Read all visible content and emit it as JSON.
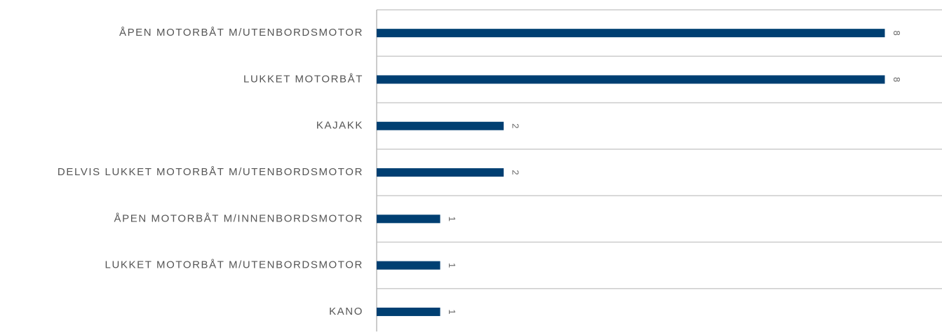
{
  "chart_data": {
    "type": "bar",
    "orientation": "horizontal",
    "categories": [
      "ÅPEN MOTORBÅT M/UTENBORDSMOTOR",
      "LUKKET MOTORBÅT",
      "KAJAKK",
      "DELVIS LUKKET MOTORBÅT M/UTENBORDSMOTOR",
      "ÅPEN MOTORBÅT M/INNENBORDSMOTOR",
      "LUKKET MOTORBÅT M/UTENBORDSMOTOR",
      "KANO"
    ],
    "values": [
      8,
      8,
      2,
      2,
      1,
      1,
      1
    ],
    "color": "#003f72",
    "xlim": [
      0,
      8.9
    ]
  }
}
